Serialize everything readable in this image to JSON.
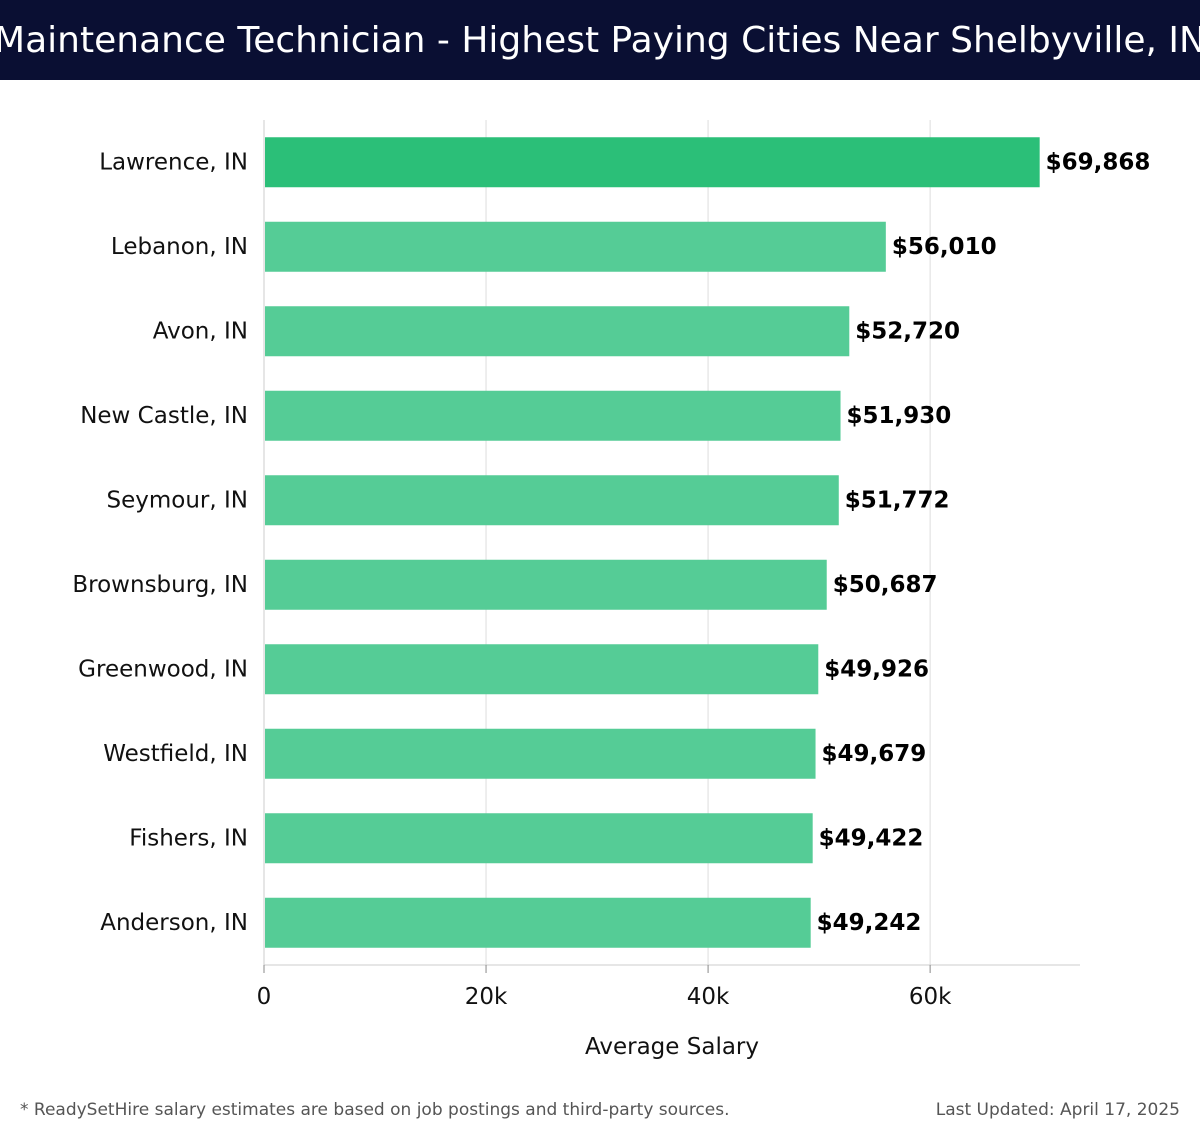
{
  "header": {
    "title": "Maintenance Technician - Highest Paying Cities Near Shelbyville, IN"
  },
  "footer": {
    "note": "* ReadySetHire salary estimates are based on job postings and third-party sources.",
    "last_updated": "Last Updated: April 17, 2025"
  },
  "colors": {
    "title_bg": "#0a0f33",
    "bar_top": "#2bbf78",
    "bar": "#55cc96",
    "grid": "#dddddd",
    "axis": "#cccccc",
    "text": "#111111"
  },
  "chart_data": {
    "type": "bar",
    "orientation": "horizontal",
    "categories": [
      "Lawrence, IN",
      "Lebanon, IN",
      "Avon, IN",
      "New Castle, IN",
      "Seymour, IN",
      "Brownsburg, IN",
      "Greenwood, IN",
      "Westfield, IN",
      "Fishers, IN",
      "Anderson, IN"
    ],
    "values": [
      69868,
      56010,
      52720,
      51930,
      51772,
      50687,
      49926,
      49679,
      49422,
      49242
    ],
    "value_labels": [
      "$69,868",
      "$56,010",
      "$52,720",
      "$51,930",
      "$51,772",
      "$50,687",
      "$49,926",
      "$49,679",
      "$49,422",
      "$49,242"
    ],
    "xlabel": "Average Salary",
    "ylabel": "",
    "xlim": [
      0,
      73500
    ],
    "x_ticks": [
      0,
      20000,
      40000,
      60000
    ],
    "x_tick_labels": [
      "0",
      "20k",
      "40k",
      "60k"
    ],
    "grid": "vertical",
    "legend": "none"
  }
}
